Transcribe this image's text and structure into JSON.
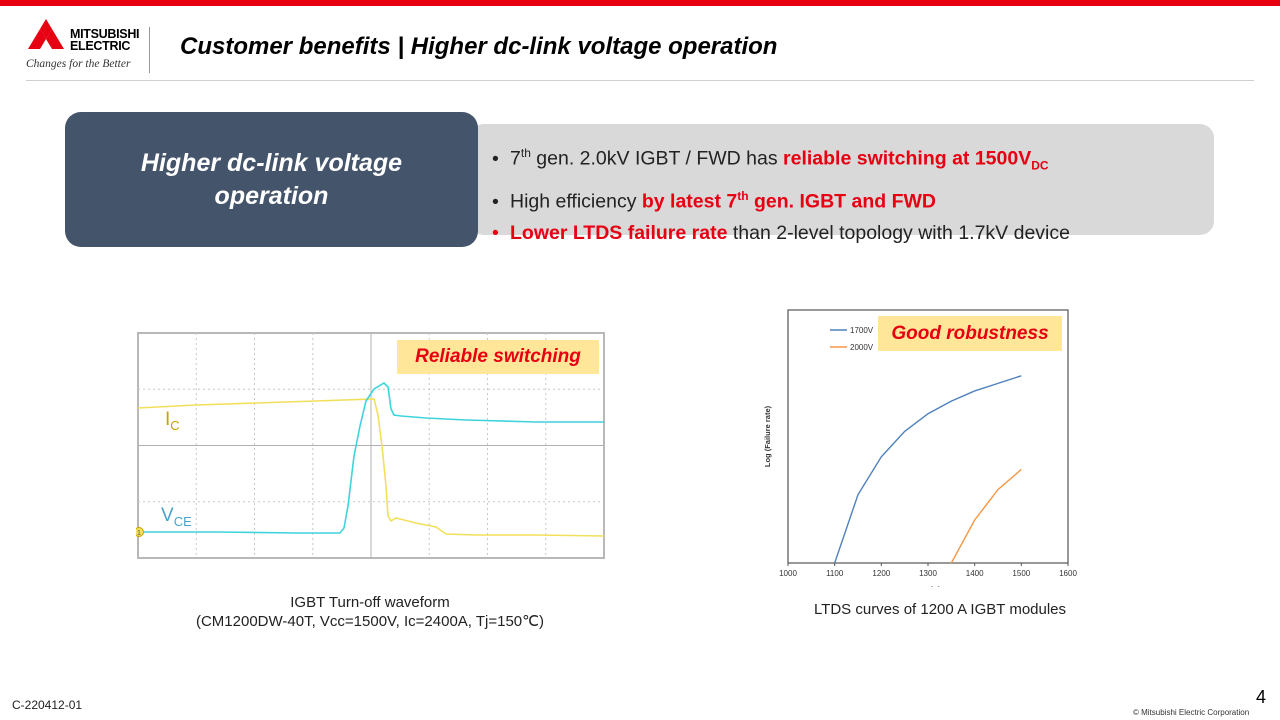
{
  "logo": {
    "word1": "MITSUBISHI",
    "word2": "ELECTRIC",
    "tagline": "Changes for the Better"
  },
  "header": {
    "title": "Customer benefits | Higher dc-link voltage operation"
  },
  "feature": {
    "heading": "Higher dc-link voltage operation"
  },
  "bullets": [
    {
      "parts": [
        {
          "t": "7"
        },
        {
          "t": "th",
          "sup": true
        },
        {
          "t": " gen. 2.0kV IGBT / FWD has "
        },
        {
          "t": "reliable switching at 1500V",
          "red": true
        },
        {
          "t": "DC",
          "sub": true,
          "red": true
        }
      ]
    },
    {
      "parts": [
        {
          "t": "High efficiency "
        },
        {
          "t": "by latest 7",
          "red": true
        },
        {
          "t": "th",
          "sup": true,
          "red": true
        },
        {
          "t": " gen. IGBT and FWD",
          "red": true
        }
      ]
    },
    {
      "red_dot": true,
      "parts": [
        {
          "t": "Lower LTDS failure rate",
          "red": true
        },
        {
          "t": " than 2-level topology with 1.7kV device"
        }
      ]
    }
  ],
  "waveform": {
    "badge": "Reliable switching",
    "ic_label": "I",
    "ic_sub": "C",
    "vce_label": "V",
    "vce_sub": "CE",
    "marker": "1",
    "caption_line1": "IGBT Turn-off waveform",
    "caption_line2": "(CM1200DW-40T, Vcc=1500V, Ic=2400A, Tj=150℃)"
  },
  "chart_data": {
    "type": "line",
    "badge": "Good robustness",
    "xlabel": "V",
    "xlabel_sub": "CE",
    "xunit": "[V]",
    "ylabel": "Log (Failure rate)",
    "xlim": [
      1000,
      1600
    ],
    "ylim": [
      0,
      1
    ],
    "x_ticks": [
      1000,
      1100,
      1200,
      1300,
      1400,
      1500,
      1600
    ],
    "series": [
      {
        "name": "1700V",
        "color": "#4f81bd",
        "x": [
          1100,
          1150,
          1200,
          1250,
          1300,
          1350,
          1400,
          1450,
          1500
        ],
        "y": [
          0.0,
          0.27,
          0.42,
          0.52,
          0.59,
          0.64,
          0.68,
          0.71,
          0.74
        ]
      },
      {
        "name": "2000V",
        "color": "#f79646",
        "x": [
          1350,
          1400,
          1450,
          1500
        ],
        "y": [
          0.0,
          0.17,
          0.29,
          0.37
        ]
      }
    ],
    "caption": "LTDS curves of 1200 A IGBT modules"
  },
  "footer": {
    "code": "C-220412-01",
    "page": "4",
    "copyright": "© Mitsubishi Electric Corporation"
  }
}
